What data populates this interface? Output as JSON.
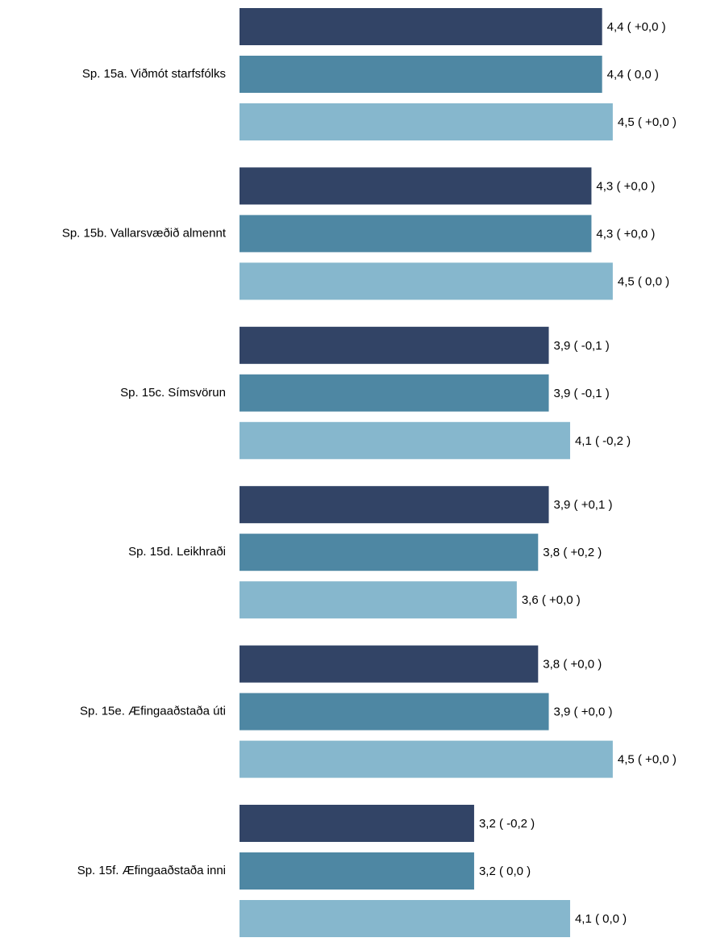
{
  "chart_data": {
    "type": "bar",
    "orientation": "horizontal",
    "categories": [
      "Sp. 15a. Viðmót starfsfólks",
      "Sp. 15b. Vallarsvæðið almennt",
      "Sp. 15c. Símsvörun",
      "Sp. 15d. Leikhraði",
      "Sp. 15e. Æfingaaðstaða úti",
      "Sp. 15f. Æfingaaðstaða inni"
    ],
    "series": [
      {
        "color": "#324466",
        "values": [
          4.4,
          4.3,
          3.9,
          3.9,
          3.8,
          3.2
        ],
        "value_labels": [
          "4,4 ( +0,0 )",
          "4,3 ( +0,0 )",
          "3,9 ( -0,1 )",
          "3,9 ( +0,1 )",
          "3,8 ( +0,0 )",
          "3,2 ( -0,2 )"
        ]
      },
      {
        "color": "#4e87a3",
        "values": [
          4.4,
          4.3,
          3.9,
          3.8,
          3.9,
          3.2
        ],
        "value_labels": [
          "4,4 ( 0,0 )",
          "4,3 ( +0,0 )",
          "3,9 ( -0,1 )",
          "3,8 ( +0,2 )",
          "3,9 ( +0,0 )",
          "3,2 ( 0,0 )"
        ]
      },
      {
        "color": "#86b7cd",
        "values": [
          4.5,
          4.5,
          4.1,
          3.6,
          4.5,
          4.1
        ],
        "value_labels": [
          "4,5 ( +0,0 )",
          "4,5 ( 0,0 )",
          "4,1 ( -0,2 )",
          "3,6 ( +0,0 )",
          "4,5 ( +0,0 )",
          "4,1 ( 0,0 )"
        ]
      }
    ],
    "xlim": [
      1,
      5
    ]
  }
}
